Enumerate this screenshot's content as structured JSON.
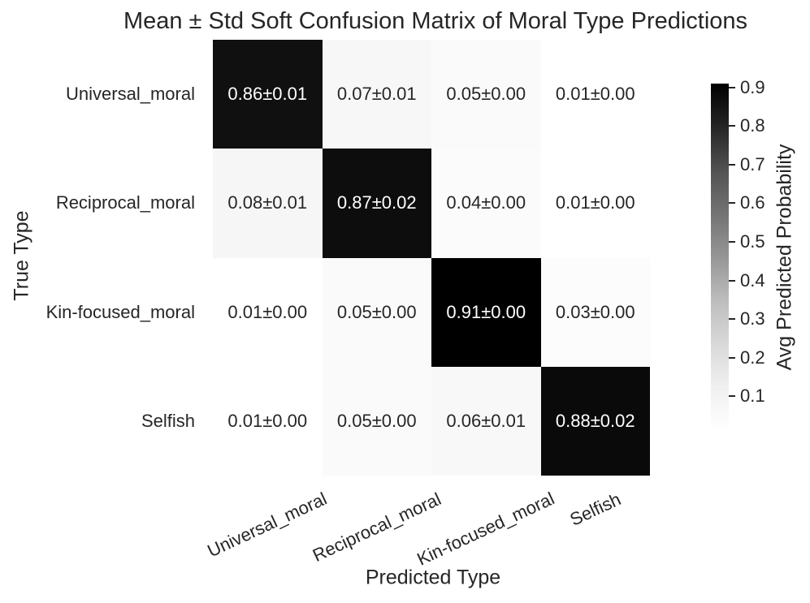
{
  "figure": {
    "background": "#ffffff",
    "text_color": "#262626"
  },
  "chart_data": {
    "type": "heatmap",
    "title": "Mean ± Std Soft Confusion Matrix of Moral Type Predictions",
    "xlabel": "Predicted Type",
    "ylabel": "True Type",
    "categories": [
      "Universal_moral",
      "Reciprocal_moral",
      "Kin-focused_moral",
      "Selfish"
    ],
    "x_categories": [
      "Universal_moral",
      "Reciprocal_moral",
      "Kin-focused_moral",
      "Selfish"
    ],
    "y_categories": [
      "Universal_moral",
      "Reciprocal_moral",
      "Kin-focused_moral",
      "Selfish"
    ],
    "mean_values": [
      [
        0.86,
        0.07,
        0.05,
        0.01
      ],
      [
        0.08,
        0.87,
        0.04,
        0.01
      ],
      [
        0.01,
        0.05,
        0.91,
        0.03
      ],
      [
        0.01,
        0.05,
        0.06,
        0.88
      ]
    ],
    "std_values": [
      [
        0.01,
        0.01,
        0.0,
        0.0
      ],
      [
        0.01,
        0.02,
        0.0,
        0.0
      ],
      [
        0.0,
        0.0,
        0.0,
        0.0
      ],
      [
        0.0,
        0.0,
        0.01,
        0.02
      ]
    ],
    "cell_text": [
      [
        "0.86±0.01",
        "0.07±0.01",
        "0.05±0.00",
        "0.01±0.00"
      ],
      [
        "0.08±0.01",
        "0.87±0.02",
        "0.04±0.00",
        "0.01±0.00"
      ],
      [
        "0.01±0.00",
        "0.05±0.00",
        "0.91±0.00",
        "0.03±0.00"
      ],
      [
        "0.01±0.00",
        "0.05±0.00",
        "0.06±0.01",
        "0.88±0.02"
      ]
    ],
    "vmin": 0.01,
    "vmax": 0.91,
    "colormap": {
      "name": "Greys",
      "stops": [
        "#ffffff",
        "#f0f0f0",
        "#d9d9d9",
        "#bdbdbd",
        "#969696",
        "#737373",
        "#525252",
        "#252525",
        "#000000"
      ]
    },
    "annotation_text_colors": {
      "light_cells": "#262626",
      "dark_cells": "#ffffff"
    },
    "grid_on": false,
    "colorbar": {
      "label": "Avg Predicted Probability",
      "ticks": [
        "0.9",
        "0.8",
        "0.7",
        "0.6",
        "0.5",
        "0.4",
        "0.3",
        "0.2",
        "0.1"
      ],
      "tick_values": [
        0.9,
        0.8,
        0.7,
        0.6,
        0.5,
        0.4,
        0.3,
        0.2,
        0.1
      ],
      "position": "right"
    }
  }
}
